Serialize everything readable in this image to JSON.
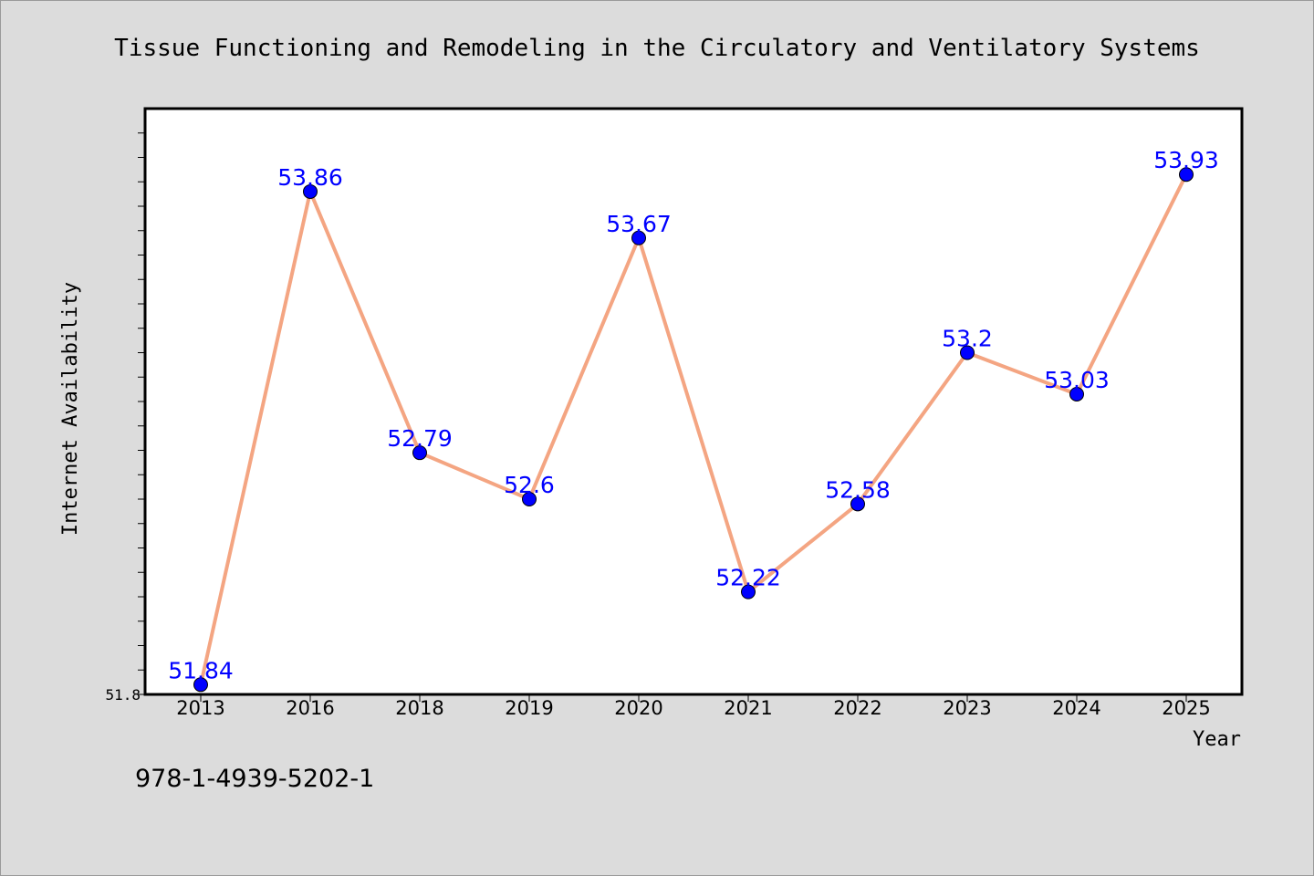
{
  "chart_data": {
    "type": "line",
    "title": "Tissue Functioning and Remodeling in the Circulatory and Ventilatory Systems",
    "xlabel": "Year",
    "ylabel": "Internet Availability",
    "categories": [
      "2013",
      "2016",
      "2018",
      "2019",
      "2020",
      "2021",
      "2022",
      "2023",
      "2024",
      "2025"
    ],
    "series": [
      {
        "values": [
          51.84,
          53.86,
          52.79,
          52.6,
          53.67,
          52.22,
          52.58,
          53.2,
          53.03,
          53.93
        ],
        "labels": [
          "51.84",
          "53.86",
          "52.79",
          "52.6",
          "53.67",
          "52.22",
          "52.58",
          "53.2",
          "53.03",
          "53.93"
        ],
        "color": "#f4a582",
        "marker_color": "#0000ff"
      }
    ],
    "ylim": [
      51.8,
      54.2
    ],
    "ytick_labels": [
      "51.8"
    ],
    "grid": false,
    "legend": "none"
  },
  "footer": {
    "identifier": "978-1-4939-5202-1"
  }
}
